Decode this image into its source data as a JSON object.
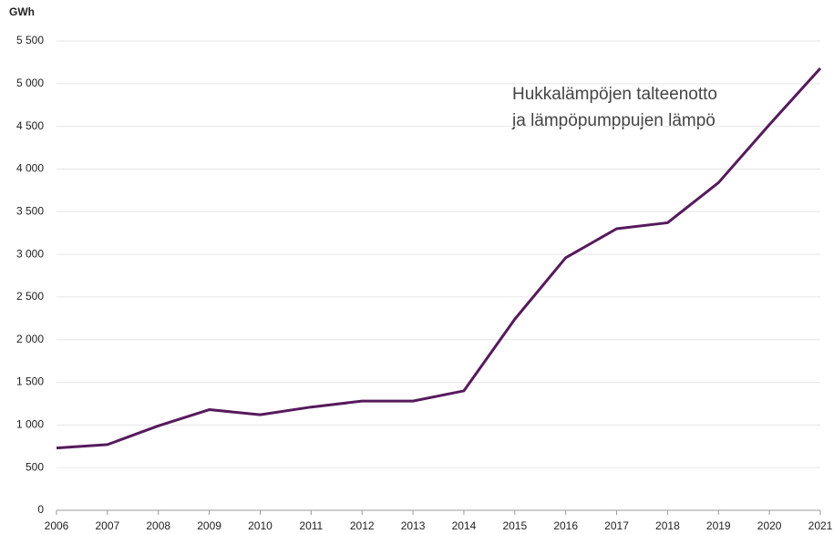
{
  "chart_data": {
    "type": "line",
    "y_label": "GWh",
    "annotation": [
      "Hukkalämpöjen talteenotto",
      "ja lämpöpumppujen lämpö"
    ],
    "x": [
      2006,
      2007,
      2008,
      2009,
      2010,
      2011,
      2012,
      2013,
      2014,
      2015,
      2016,
      2017,
      2018,
      2019,
      2020,
      2021
    ],
    "series": [
      {
        "name": "Hukkalämpöjen talteenotto ja lämpöpumppujen lämpö",
        "color": "#561a5c",
        "values": [
          730,
          770,
          990,
          1180,
          1120,
          1210,
          1280,
          1280,
          1400,
          2240,
          2960,
          3300,
          3370,
          3840,
          4520,
          5180
        ]
      }
    ],
    "xlim": [
      2006,
      2021
    ],
    "xticks": [
      2006,
      2007,
      2008,
      2009,
      2010,
      2011,
      2012,
      2013,
      2014,
      2015,
      2016,
      2017,
      2018,
      2019,
      2020,
      2021
    ],
    "ylim": [
      0,
      5500
    ],
    "yticks": [
      0,
      500,
      {
        "value": 1000,
        "label": "1 000"
      },
      {
        "value": 1500,
        "label": "1 500"
      },
      {
        "value": 2000,
        "label": "2 000"
      },
      {
        "value": 2500,
        "label": "2 500"
      },
      {
        "value": 3000,
        "label": "3 000"
      },
      {
        "value": 3500,
        "label": "3 500"
      },
      {
        "value": 4000,
        "label": "4 000"
      },
      {
        "value": 4500,
        "label": "4 500"
      },
      {
        "value": 5000,
        "label": "5 000"
      },
      {
        "value": 5500,
        "label": "5 500"
      }
    ],
    "grid": true
  }
}
